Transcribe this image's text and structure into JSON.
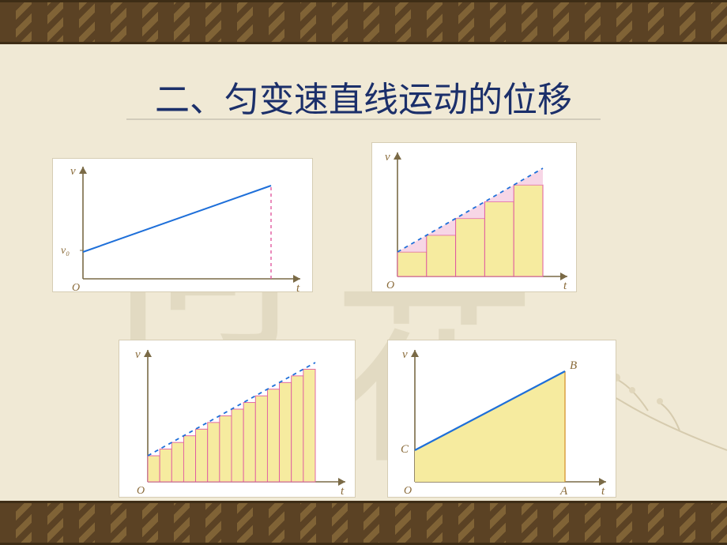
{
  "title": "二、匀变速直线运动的位移",
  "colors": {
    "slide_bg": "#f0e9d5",
    "band_dark": "#5b4224",
    "title_text": "#1b2f6a",
    "panel_bg": "#ffffff",
    "axis": "#7a6a46",
    "line_blue": "#1e6fd9",
    "dash_pink": "#e05aa0",
    "fill_yellow": "#f6eb9f",
    "label_brown": "#8a6b3a"
  },
  "axis_labels": {
    "x": "t",
    "y": "v",
    "origin": "O",
    "v0": "v₀",
    "A": "A",
    "B": "B",
    "C": "C"
  },
  "charts": {
    "chart1": {
      "type": "line",
      "desc": "velocity-time linear, dashed vertical at end",
      "xlim": [
        0,
        10
      ],
      "ylim": [
        0,
        10
      ],
      "line": {
        "x1": 0,
        "y1": 2.4,
        "x2": 9.2,
        "y2": 8.0,
        "color": "#1e6fd9",
        "width": 2
      },
      "v0_mark": {
        "y": 2.4
      },
      "dash_vertical": {
        "x": 9.2,
        "y_from": 0,
        "y_to": 8.0,
        "color": "#e05aa0"
      }
    },
    "chart2": {
      "type": "bar-under-line",
      "desc": "wide Riemann bars under dashed blue line",
      "xlim": [
        0,
        10
      ],
      "ylim": [
        0,
        10
      ],
      "line_dashed": {
        "x1": 0,
        "y1": 2.2,
        "x2": 9.2,
        "y2": 8.6,
        "color": "#1e6fd9"
      },
      "bar_color": "#f6eb9f",
      "bar_edge": "#e05aa0",
      "n_bars": 5,
      "bar_heights": [
        2.2,
        3.48,
        4.76,
        6.04,
        7.32
      ]
    },
    "chart3": {
      "type": "bar-under-line",
      "desc": "many narrow Riemann bars under dashed blue line",
      "xlim": [
        0,
        10
      ],
      "ylim": [
        0,
        10
      ],
      "line_dashed": {
        "x1": 0,
        "y1": 2.2,
        "x2": 9.2,
        "y2": 8.6,
        "color": "#1e6fd9"
      },
      "bar_color": "#f6eb9f",
      "bar_edge": "#e05aa0",
      "n_bars": 14
    },
    "chart4": {
      "type": "area-trapezoid",
      "desc": "filled trapezoid O-A-B-C under solid blue line",
      "xlim": [
        0,
        10
      ],
      "ylim": [
        0,
        10
      ],
      "line": {
        "x1": 0,
        "y1": 2.6,
        "x2": 8.2,
        "y2": 8.2,
        "color": "#1e6fd9",
        "width": 2
      },
      "fill_color": "#f6eb9f",
      "points": {
        "C": [
          0,
          2.6
        ],
        "B": [
          8.2,
          8.2
        ],
        "A": [
          8.2,
          0
        ],
        "O": [
          0,
          0
        ]
      }
    }
  }
}
